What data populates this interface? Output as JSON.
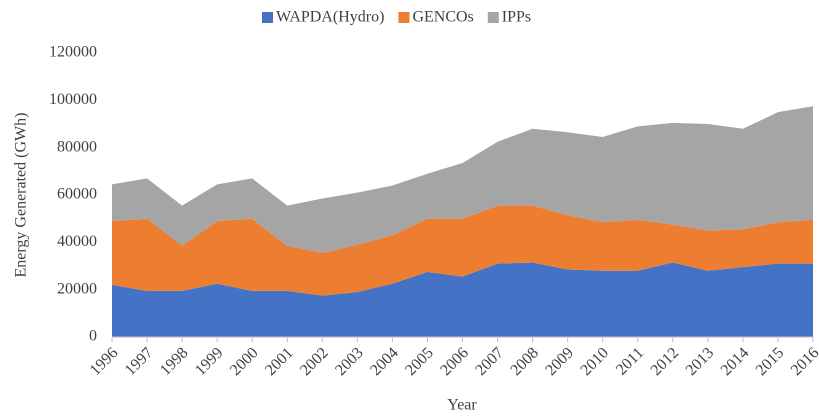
{
  "chart_data": {
    "type": "area",
    "stacked": true,
    "xlabel": "Year",
    "ylabel": "Energy Generated (GWh)",
    "categories": [
      "1996",
      "1997",
      "1998",
      "1999",
      "2000",
      "2001",
      "2002",
      "2003",
      "2004",
      "2005",
      "2006",
      "2007",
      "2008",
      "2009",
      "2010",
      "2011",
      "2012",
      "2013",
      "2014",
      "2015",
      "2016"
    ],
    "series": [
      {
        "name": "WAPDA(Hydro)",
        "color": "#4472c4",
        "values": [
          22000,
          19500,
          19500,
          22500,
          19500,
          19500,
          17500,
          19000,
          22500,
          27500,
          25500,
          31000,
          31500,
          28500,
          28000,
          28000,
          31500,
          28000,
          29500,
          31000,
          31000
        ]
      },
      {
        "name": "GENCOs",
        "color": "#ed7d31",
        "values": [
          27000,
          30500,
          19000,
          26500,
          30500,
          19000,
          18000,
          20000,
          20500,
          22500,
          24500,
          24500,
          24000,
          23000,
          20500,
          21500,
          16000,
          17000,
          16000,
          17500,
          18500
        ]
      },
      {
        "name": "IPPs",
        "color": "#a5a5a5",
        "values": [
          15500,
          17000,
          17000,
          15500,
          17000,
          17000,
          23000,
          22000,
          21000,
          19000,
          23500,
          27000,
          32500,
          35000,
          36000,
          39500,
          43000,
          45000,
          42500,
          46500,
          48000
        ]
      }
    ],
    "ylim": [
      0,
      120000
    ],
    "yticks": [
      0,
      20000,
      40000,
      60000,
      80000,
      100000,
      120000
    ],
    "legend": "top"
  }
}
